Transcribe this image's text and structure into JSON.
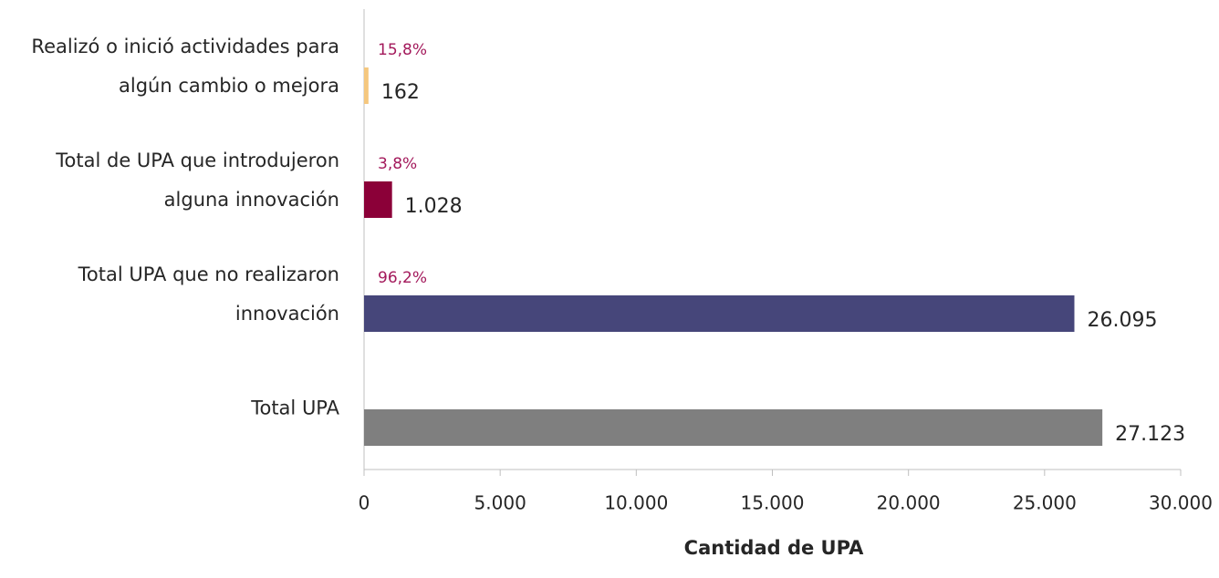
{
  "chart_data": {
    "type": "bar",
    "orientation": "horizontal",
    "categories": [
      "Realizó o inició actividades para algún cambio o mejora",
      "Total de UPA que introdujeron alguna innovación",
      "Total UPA que no realizaron innovación",
      "Total UPA"
    ],
    "values": [
      162,
      1028,
      26095,
      27123
    ],
    "value_labels": [
      "162",
      "1.028",
      "26.095",
      "27.123"
    ],
    "annotations": [
      "15,8%",
      "3,8%",
      "96,2%",
      null
    ],
    "colors": [
      "#f5c77e",
      "#8b0038",
      "#46467a",
      "#7f7f7f"
    ],
    "xlabel": "Cantidad de UPA",
    "xlim": [
      0,
      30000
    ],
    "xticks": [
      0,
      {
        "value": 5000,
        "label": "5.000"
      },
      {
        "value": 10000,
        "label": "10.000"
      },
      {
        "value": 15000,
        "label": "15.000"
      },
      {
        "value": 20000,
        "label": "20.000"
      },
      {
        "value": 25000,
        "label": "25.000"
      },
      {
        "value": 30000,
        "label": "30.000"
      }
    ],
    "grid": false
  }
}
